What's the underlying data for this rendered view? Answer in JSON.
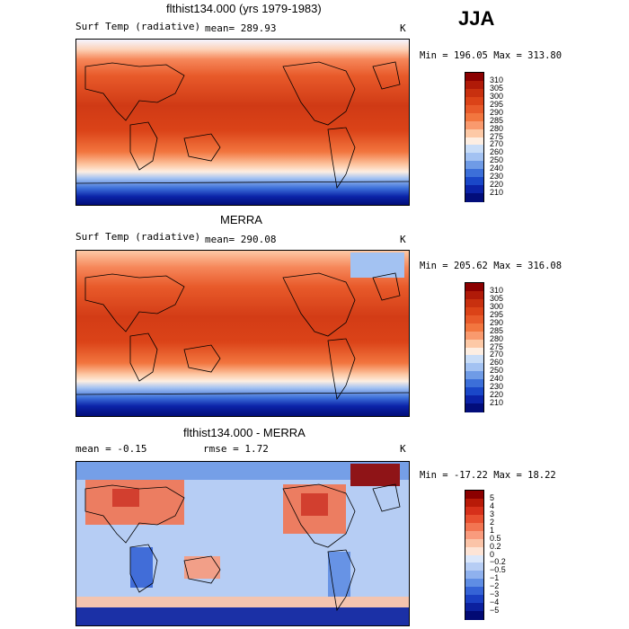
{
  "season": "JJA",
  "panels": [
    {
      "title": "flthist134.000 (yrs 1979-1983)",
      "left_label": "Surf Temp (radiative)",
      "mean_label": "mean=",
      "mean_value": "289.93",
      "units": "K",
      "min_label": "Min =",
      "min_value": "196.05",
      "max_label": "Max =",
      "max_value": "313.80",
      "colorbar": {
        "labels": [
          "310",
          "305",
          "300",
          "295",
          "290",
          "285",
          "280",
          "275",
          "270",
          "260",
          "250",
          "240",
          "230",
          "220",
          "210"
        ],
        "colors": [
          "#8b0000",
          "#b01a08",
          "#c8300f",
          "#db4318",
          "#e85a2a",
          "#f2763f",
          "#f99a6e",
          "#fdc9a6",
          "#fdeee2",
          "#c9ddf7",
          "#a3c2f2",
          "#6f9be6",
          "#3c6fd9",
          "#1a47c8",
          "#0b23a8",
          "#020d7a"
        ]
      }
    },
    {
      "title": "MERRA",
      "left_label": "Surf Temp (radiative)",
      "mean_label": "mean=",
      "mean_value": "290.08",
      "units": "K",
      "min_label": "Min =",
      "min_value": "205.62",
      "max_label": "Max =",
      "max_value": "316.08",
      "colorbar": {
        "labels": [
          "310",
          "305",
          "300",
          "295",
          "290",
          "285",
          "280",
          "275",
          "270",
          "260",
          "250",
          "240",
          "230",
          "220",
          "210"
        ],
        "colors": [
          "#8b0000",
          "#b01a08",
          "#c8300f",
          "#db4318",
          "#e85a2a",
          "#f2763f",
          "#f99a6e",
          "#fdc9a6",
          "#fdeee2",
          "#c9ddf7",
          "#a3c2f2",
          "#6f9be6",
          "#3c6fd9",
          "#1a47c8",
          "#0b23a8",
          "#020d7a"
        ]
      }
    },
    {
      "title": "flthist134.000 - MERRA",
      "left_label": "",
      "mean_label": "mean =",
      "mean_value": "-0.15",
      "rmse_label": "rmse =",
      "rmse_value": "1.72",
      "units": "K",
      "min_label": "Min =",
      "min_value": "-17.22",
      "max_label": "Max =",
      "max_value": "18.22",
      "colorbar": {
        "labels": [
          "5",
          "4",
          "3",
          "2",
          "1",
          "0.5",
          "0.2",
          "0",
          "−0.2",
          "−0.5",
          "−1",
          "−2",
          "−3",
          "−4",
          "−5"
        ],
        "colors": [
          "#8b0000",
          "#b81a08",
          "#d6301a",
          "#e85030",
          "#f27552",
          "#f99b7d",
          "#fbc4a8",
          "#fde4d6",
          "#dbe7fa",
          "#b6cdf4",
          "#8fb1ee",
          "#5f8de4",
          "#3563d6",
          "#1a3fc2",
          "#0b209e",
          "#020a74"
        ]
      }
    }
  ]
}
